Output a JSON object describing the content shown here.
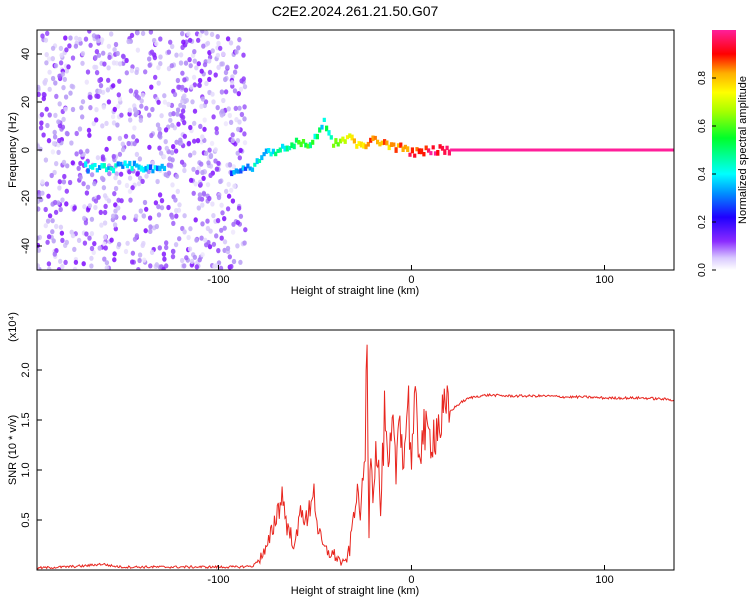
{
  "figure": {
    "title": "C2E2.2024.261.21.50.G07"
  },
  "chart_data": [
    {
      "type": "heatmap",
      "xlabel": "Height of straight line (km)",
      "ylabel": "Frequency (Hz)",
      "xlim": [
        -194,
        136
      ],
      "ylim": [
        -50,
        50
      ],
      "x_ticks": [
        -100,
        0,
        100
      ],
      "y_ticks": [
        -40,
        -20,
        0,
        20,
        40
      ],
      "colorbar": {
        "label": "Normalized spectral amplitude",
        "range": [
          0,
          1
        ],
        "ticks": [
          0.0,
          0.2,
          0.4,
          0.6,
          0.8
        ],
        "colormap": [
          "#ffffff",
          "#b59af5",
          "#7a00ff",
          "#1f00ff",
          "#0090ff",
          "#00ffff",
          "#00ff2a",
          "#a6ff00",
          "#ffff00",
          "#ffae00",
          "#ff0000",
          "#ff1f9a"
        ]
      },
      "ridge": [
        {
          "x": -170,
          "f": -7,
          "a": 0.38
        },
        {
          "x": -160,
          "f": -8,
          "a": 0.42
        },
        {
          "x": -150,
          "f": -7,
          "a": 0.4
        },
        {
          "x": -140,
          "f": -7,
          "a": 0.4
        },
        {
          "x": -132,
          "f": -8,
          "a": 0.38
        },
        {
          "x": -92,
          "f": -9,
          "a": 0.35
        },
        {
          "x": -84,
          "f": -8,
          "a": 0.4
        },
        {
          "x": -75,
          "f": -1,
          "a": 0.45
        },
        {
          "x": -68,
          "f": 0,
          "a": 0.5
        },
        {
          "x": -60,
          "f": 3,
          "a": 0.5
        },
        {
          "x": -52,
          "f": 2,
          "a": 0.55
        },
        {
          "x": -45,
          "f": 12,
          "a": 0.45
        },
        {
          "x": -40,
          "f": 2,
          "a": 0.6
        },
        {
          "x": -32,
          "f": 5,
          "a": 0.75
        },
        {
          "x": -25,
          "f": 1,
          "a": 0.75
        },
        {
          "x": -20,
          "f": 4,
          "a": 0.85
        },
        {
          "x": -10,
          "f": 2,
          "a": 0.8
        },
        {
          "x": 0,
          "f": -1,
          "a": 0.9
        },
        {
          "x": 10,
          "f": 0,
          "a": 0.95
        },
        {
          "x": 20,
          "f": 0,
          "a": 1.0
        },
        {
          "x": 60,
          "f": 0,
          "a": 1.0
        },
        {
          "x": 100,
          "f": 0,
          "a": 1.0
        },
        {
          "x": 136,
          "f": 0,
          "a": 1.0
        }
      ]
    },
    {
      "type": "line",
      "xlabel": "Height of straight line (km)",
      "ylabel": "SNR (10 * v/v)",
      "y_multiplier": "(x10⁴)",
      "xlim": [
        -194,
        136
      ],
      "ylim": [
        0,
        2.4
      ],
      "x_ticks": [
        -100,
        0,
        100
      ],
      "y_ticks": [
        0.5,
        1.0,
        1.5,
        2.0
      ],
      "color": "#e8261f",
      "series": [
        {
          "x": [
            -194,
            -180,
            -170,
            -160,
            -155,
            -150,
            -140,
            -130,
            -120,
            -110,
            -100,
            -90,
            -82,
            -75,
            -70,
            -67,
            -64,
            -60,
            -57,
            -54,
            -51,
            -48,
            -45,
            -40,
            -35,
            -32,
            -29,
            -26,
            -24,
            -23,
            -22,
            -21,
            -20,
            -18,
            -16,
            -14,
            -12,
            -10,
            -8,
            -6,
            -4,
            -2,
            0,
            2,
            4,
            6,
            8,
            10,
            14,
            18,
            22,
            26,
            30,
            35,
            40,
            50,
            60,
            70,
            80,
            90,
            100,
            110,
            120,
            130,
            136
          ],
          "y": [
            0.02,
            0.03,
            0.04,
            0.06,
            0.04,
            0.03,
            0.03,
            0.03,
            0.03,
            0.03,
            0.03,
            0.03,
            0.04,
            0.2,
            0.55,
            0.75,
            0.4,
            0.25,
            0.65,
            0.45,
            0.85,
            0.35,
            0.2,
            0.15,
            0.05,
            0.2,
            0.75,
            0.6,
            1.2,
            2.3,
            0.4,
            1.4,
            0.8,
            1.3,
            0.6,
            1.5,
            0.9,
            1.4,
            1.0,
            1.7,
            1.0,
            1.8,
            1.1,
            1.6,
            1.2,
            1.4,
            1.3,
            1.35,
            1.45,
            1.55,
            1.62,
            1.68,
            1.72,
            1.74,
            1.75,
            1.74,
            1.74,
            1.74,
            1.73,
            1.73,
            1.72,
            1.72,
            1.72,
            1.71,
            1.7
          ]
        }
      ]
    }
  ]
}
